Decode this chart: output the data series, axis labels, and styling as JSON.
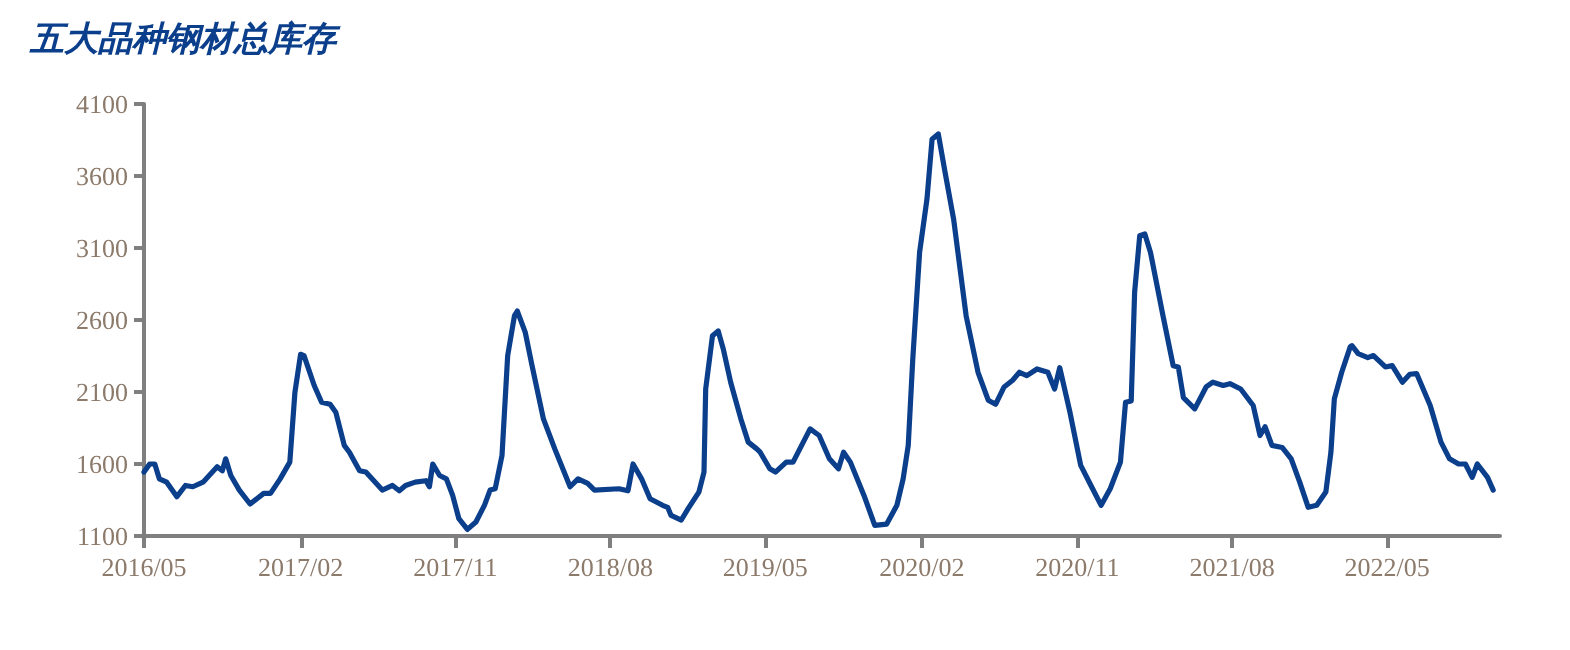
{
  "chart_data": {
    "type": "line",
    "title": "五大品种钢材总库存",
    "x": [
      "2016-05-01",
      "2016-05-11",
      "2016-05-20",
      "2016-05-28",
      "2016-06-10",
      "2016-06-28",
      "2016-07-13",
      "2016-07-26",
      "2016-08-13",
      "2016-09-07",
      "2016-09-16",
      "2016-09-22",
      "2016-10-01",
      "2016-10-16",
      "2016-11-04",
      "2016-11-28",
      "2016-12-10",
      "2016-12-27",
      "2017-01-13",
      "2017-01-22",
      "2017-02-01",
      "2017-02-07",
      "2017-02-25",
      "2017-03-10",
      "2017-03-25",
      "2017-04-04",
      "2017-04-19",
      "2017-04-28",
      "2017-05-16",
      "2017-05-27",
      "2017-06-25",
      "2017-07-13",
      "2017-07-25",
      "2017-08-05",
      "2017-08-22",
      "2017-09-10",
      "2017-09-16",
      "2017-09-22",
      "2017-10-04",
      "2017-10-16",
      "2017-10-27",
      "2017-11-07",
      "2017-11-22",
      "2017-12-07",
      "2017-12-22",
      "2018-01-01",
      "2018-01-10",
      "2018-01-22",
      "2018-02-01",
      "2018-02-13",
      "2018-02-18",
      "2018-03-04",
      "2018-03-16",
      "2018-04-05",
      "2018-04-25",
      "2018-05-22",
      "2018-06-05",
      "2018-06-22",
      "2018-07-04",
      "2018-08-16",
      "2018-09-01",
      "2018-09-10",
      "2018-09-25",
      "2018-10-10",
      "2018-11-01",
      "2018-11-10",
      "2018-11-16",
      "2018-12-04",
      "2018-12-16",
      "2019-01-04",
      "2019-01-13",
      "2019-01-16",
      "2019-01-28",
      "2019-02-07",
      "2019-02-16",
      "2019-03-01",
      "2019-03-19",
      "2019-04-01",
      "2019-04-16",
      "2019-04-22",
      "2019-05-09",
      "2019-05-19",
      "2019-06-07",
      "2019-06-19",
      "2019-07-19",
      "2019-08-04",
      "2019-08-22",
      "2019-09-07",
      "2019-09-16",
      "2019-09-28",
      "2019-10-22",
      "2019-11-10",
      "2019-12-01",
      "2019-12-19",
      "2019-12-30",
      "2020-01-08",
      "2020-01-16",
      "2020-01-28",
      "2020-02-10",
      "2020-02-19",
      "2020-03-01",
      "2020-03-13",
      "2020-03-28",
      "2020-04-19",
      "2020-05-10",
      "2020-05-28",
      "2020-06-10",
      "2020-06-25",
      "2020-07-10",
      "2020-07-22",
      "2020-08-04",
      "2020-08-22",
      "2020-09-10",
      "2020-09-22",
      "2020-10-01",
      "2020-10-19",
      "2020-11-07",
      "2020-11-25",
      "2020-12-13",
      "2020-12-29",
      "2021-01-16",
      "2021-01-25",
      "2021-02-04",
      "2021-02-10",
      "2021-02-19",
      "2021-02-28",
      "2021-03-10",
      "2021-04-01",
      "2021-04-19",
      "2021-04-28",
      "2021-05-07",
      "2021-05-27",
      "2021-06-16",
      "2021-06-28",
      "2021-07-16",
      "2021-07-28",
      "2021-08-16",
      "2021-09-07",
      "2021-09-19",
      "2021-09-28",
      "2021-10-10",
      "2021-10-28",
      "2021-11-13",
      "2021-11-28",
      "2021-12-13",
      "2021-12-28",
      "2022-01-13",
      "2022-01-22",
      "2022-01-28",
      "2022-02-10",
      "2022-02-25",
      "2022-02-28",
      "2022-03-11",
      "2022-03-28",
      "2022-04-07",
      "2022-04-28",
      "2022-05-10",
      "2022-05-28",
      "2022-06-10",
      "2022-06-22",
      "2022-07-16",
      "2022-08-04",
      "2022-08-19",
      "2022-09-04",
      "2022-09-16",
      "2022-09-28",
      "2022-10-07",
      "2022-10-25",
      "2022-11-04"
    ],
    "series": [
      {
        "color": "#0b3f8c",
        "values": [
          1544,
          1600,
          1600,
          1497,
          1474,
          1373,
          1451,
          1442,
          1474,
          1581,
          1553,
          1636,
          1520,
          1419,
          1322,
          1396,
          1396,
          1497,
          1613,
          2098,
          2362,
          2353,
          2145,
          2029,
          2015,
          1960,
          1729,
          1682,
          1553,
          1544,
          1419,
          1451,
          1414,
          1451,
          1474,
          1484,
          1442,
          1600,
          1520,
          1497,
          1382,
          1220,
          1146,
          1197,
          1313,
          1419,
          1428,
          1659,
          2353,
          2630,
          2662,
          2514,
          2283,
          1913,
          1705,
          1442,
          1497,
          1465,
          1419,
          1428,
          1414,
          1600,
          1497,
          1359,
          1313,
          1299,
          1243,
          1211,
          1290,
          1405,
          1544,
          2121,
          2491,
          2524,
          2399,
          2168,
          1913,
          1752,
          1705,
          1682,
          1567,
          1544,
          1613,
          1613,
          1844,
          1798,
          1636,
          1567,
          1682,
          1613,
          1382,
          1174,
          1183,
          1313,
          1497,
          1729,
          2329,
          3069,
          3439,
          3855,
          3892,
          3624,
          3300,
          2630,
          2237,
          2043,
          2015,
          2135,
          2182,
          2237,
          2214,
          2260,
          2237,
          2121,
          2269,
          1960,
          1590,
          1451,
          1313,
          1428,
          1613,
          2029,
          2038,
          2792,
          3185,
          3198,
          3069,
          2630,
          2283,
          2274,
          2061,
          1983,
          2135,
          2168,
          2145,
          2158,
          2121,
          2006,
          1798,
          1858,
          1729,
          1715,
          1636,
          1474,
          1299,
          1313,
          1405,
          1682,
          2052,
          2237,
          2413,
          2422,
          2366,
          2339,
          2353,
          2274,
          2283,
          2168,
          2223,
          2228,
          2006,
          1752,
          1636,
          1600,
          1600,
          1507,
          1600,
          1507,
          1419
        ]
      }
    ],
    "xlim": [
      "2016-05-01",
      "2022-11-16"
    ],
    "xticks": [
      {
        "value": "2016-05-01",
        "label": "2016/05"
      },
      {
        "value": "2017-02-01",
        "label": "2017/02"
      },
      {
        "value": "2017-11-01",
        "label": "2017/11"
      },
      {
        "value": "2018-08-01",
        "label": "2018/08"
      },
      {
        "value": "2019-05-01",
        "label": "2019/05"
      },
      {
        "value": "2020-02-01",
        "label": "2020/02"
      },
      {
        "value": "2020-11-01",
        "label": "2020/11"
      },
      {
        "value": "2021-08-01",
        "label": "2021/08"
      },
      {
        "value": "2022-05-01",
        "label": "2022/05"
      }
    ],
    "ylim": [
      1100,
      4100
    ],
    "yticks": [
      1100,
      1600,
      2100,
      2600,
      3100,
      3600,
      4100
    ],
    "grid": false,
    "marker": "none",
    "line_style": "solid"
  }
}
